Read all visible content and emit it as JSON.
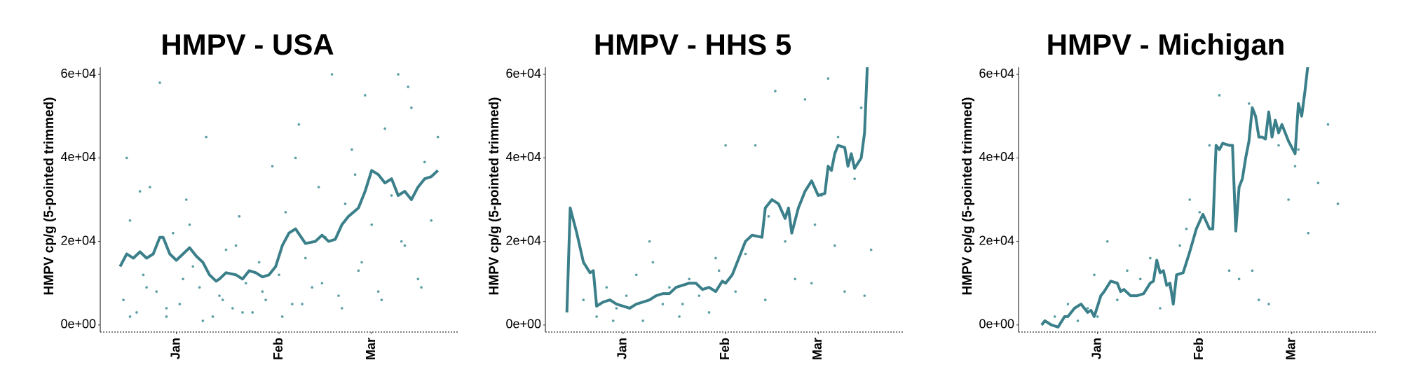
{
  "chart_data": [
    {
      "type": "line",
      "title": "HMPV - USA",
      "y_label": "HMPV cp/g (5-pointed trimmed)",
      "xlim": [
        -23,
        85
      ],
      "ylim": [
        -1700,
        61700
      ],
      "xticks": [
        {
          "value": 0,
          "label": "Jan"
        },
        {
          "value": 31,
          "label": "Feb"
        },
        {
          "value": 59,
          "label": "Mar"
        }
      ],
      "yticks": [
        {
          "value": 0,
          "label": "0e+00"
        },
        {
          "value": 20000,
          "label": "2e+04"
        },
        {
          "value": 40000,
          "label": "4e+04"
        },
        {
          "value": 60000,
          "label": "6e+04"
        }
      ],
      "series": [
        {
          "type": "scatter",
          "color": "#5b9ea6",
          "x": [
            -16,
            -15,
            -14,
            -12,
            -10,
            -8,
            -6,
            -5,
            -3,
            -1,
            1,
            3,
            5,
            7,
            9,
            11,
            13,
            15,
            17,
            19,
            21,
            23,
            25,
            27,
            29,
            31,
            33,
            35,
            37,
            39,
            41,
            43,
            45,
            47,
            49,
            51,
            53,
            55,
            57,
            59,
            61,
            63,
            65,
            67,
            69,
            71,
            73,
            75,
            77,
            79,
            -14,
            -9,
            -3,
            2,
            8,
            14,
            20,
            26,
            32,
            38,
            44,
            50,
            56,
            62,
            68,
            74,
            -11,
            4,
            18,
            36,
            54,
            70
          ],
          "values": [
            6000,
            40000,
            25000,
            3000,
            12000,
            33000,
            8000,
            58000,
            2000,
            22000,
            5000,
            30000,
            14000,
            9000,
            45000,
            2000,
            7000,
            18000,
            4000,
            26000,
            10000,
            3000,
            15000,
            6000,
            38000,
            12000,
            27000,
            5000,
            48000,
            16000,
            9000,
            33000,
            21000,
            60000,
            7000,
            29000,
            42000,
            13000,
            55000,
            24000,
            8000,
            47000,
            31000,
            60000,
            19000,
            52000,
            11000,
            39000,
            25000,
            45000,
            2000,
            9000,
            4000,
            11000,
            1000,
            6000,
            3000,
            8000,
            2000,
            5000,
            10000,
            4000,
            15000,
            6000,
            20000,
            9000,
            32000,
            24000,
            19000,
            40000,
            36000,
            57000
          ]
        },
        {
          "type": "line",
          "color": "#3a7f89",
          "x": [
            -17,
            -15,
            -13,
            -11,
            -9,
            -7,
            -5,
            -4,
            -2,
            0,
            2,
            4,
            6,
            8,
            10,
            12,
            13,
            15,
            18,
            20,
            22,
            24,
            26,
            28,
            30,
            32,
            34,
            36,
            39,
            42,
            44,
            46,
            48,
            50,
            52,
            55,
            57,
            59,
            61,
            63,
            65,
            67,
            69,
            71,
            73,
            75,
            77,
            79
          ],
          "values": [
            14000,
            17000,
            16000,
            17500,
            16000,
            17000,
            21000,
            21000,
            17000,
            15500,
            17000,
            18500,
            16500,
            15000,
            12000,
            10500,
            11000,
            12500,
            12000,
            11000,
            13000,
            12500,
            11500,
            12000,
            14000,
            19000,
            22000,
            23000,
            19500,
            20000,
            21500,
            20000,
            20500,
            24000,
            26000,
            28000,
            32000,
            37000,
            36000,
            34000,
            35000,
            31000,
            32000,
            30000,
            33000,
            35000,
            35500,
            37000
          ]
        }
      ]
    },
    {
      "type": "line",
      "title": "HMPV - HHS 5",
      "y_label": "HMPV cp/g (5-pointed trimmed)",
      "xlim": [
        -23.5,
        84.6
      ],
      "ylim": [
        -1700,
        61700
      ],
      "xticks": [
        {
          "value": 0,
          "label": "Jan"
        },
        {
          "value": 31,
          "label": "Feb"
        },
        {
          "value": 59,
          "label": "Mar"
        }
      ],
      "yticks": [
        {
          "value": 0,
          "label": "0e+00"
        },
        {
          "value": 20000,
          "label": "2e+04"
        },
        {
          "value": 40000,
          "label": "4e+04"
        },
        {
          "value": 60000,
          "label": "6e+04"
        }
      ],
      "series": [
        {
          "type": "scatter",
          "color": "#5b9ea6",
          "x": [
            -12,
            -8,
            -5,
            -2,
            1,
            4,
            6,
            9,
            12,
            14,
            17,
            20,
            23,
            26,
            29,
            31,
            34,
            37,
            40,
            43,
            46,
            49,
            52,
            55,
            57,
            60,
            62,
            65,
            67,
            70,
            72,
            75,
            -3,
            8,
            18,
            28,
            44,
            58,
            64,
            73
          ],
          "values": [
            6000,
            2000,
            9000,
            4000,
            7000,
            12000,
            1000,
            15000,
            5000,
            9000,
            2000,
            11000,
            7000,
            3000,
            13000,
            43000,
            8000,
            17000,
            43000,
            6000,
            56000,
            20000,
            11000,
            54000,
            10000,
            31000,
            59000,
            45000,
            8000,
            35000,
            52000,
            18000,
            1000,
            20000,
            5000,
            16000,
            26000,
            24000,
            19000,
            7000
          ]
        },
        {
          "type": "line",
          "color": "#3a7f89",
          "x": [
            -17,
            -16,
            -14,
            -12,
            -10,
            -9,
            -8,
            -6,
            -4,
            -2,
            0,
            2,
            4,
            6,
            8,
            10,
            12,
            14,
            16,
            18,
            20,
            22,
            24,
            26,
            28,
            30,
            31,
            33,
            35,
            37,
            39,
            42,
            43,
            45,
            47,
            49,
            50,
            51,
            53,
            55,
            57,
            59,
            61,
            62,
            63,
            64,
            65,
            67,
            68,
            69,
            70,
            72,
            73,
            74
          ],
          "values": [
            3000,
            28000,
            22000,
            15000,
            12500,
            13000,
            4500,
            5500,
            6000,
            5000,
            4500,
            4000,
            5000,
            5500,
            6000,
            7000,
            7500,
            7500,
            9000,
            9500,
            10000,
            10000,
            8500,
            9000,
            8000,
            10500,
            10000,
            12000,
            16000,
            20000,
            21500,
            21000,
            28000,
            30000,
            29000,
            25500,
            28000,
            22000,
            28000,
            32000,
            34500,
            31000,
            31500,
            38000,
            37000,
            41000,
            43000,
            42500,
            38000,
            41000,
            37500,
            40000,
            46000,
            65000
          ]
        }
      ]
    },
    {
      "type": "line",
      "title": "HMPV - Michigan",
      "y_label": "HMPV cp/g (5-pointed trimmed)",
      "xlim": [
        -24,
        84.6
      ],
      "ylim": [
        -1700,
        61700
      ],
      "xticks": [
        {
          "value": 0,
          "label": "Jan"
        },
        {
          "value": 31,
          "label": "Feb"
        },
        {
          "value": 59,
          "label": "Mar"
        }
      ],
      "yticks": [
        {
          "value": 0,
          "label": "0e+00"
        },
        {
          "value": 20000,
          "label": "2e+04"
        },
        {
          "value": 40000,
          "label": "4e+04"
        },
        {
          "value": 60000,
          "label": "6e+04"
        }
      ],
      "series": [
        {
          "type": "scatter",
          "color": "#5b9ea6",
          "x": [
            -13,
            -9,
            -6,
            -3,
            0,
            3,
            6,
            9,
            13,
            16,
            19,
            22,
            25,
            28,
            31,
            34,
            37,
            40,
            43,
            46,
            49,
            52,
            55,
            58,
            61,
            64,
            67,
            70,
            73,
            -1,
            11,
            27,
            47,
            60
          ],
          "values": [
            2000,
            5000,
            1000,
            4000,
            2000,
            20000,
            6000,
            13000,
            11000,
            16000,
            4000,
            9000,
            19000,
            30000,
            27000,
            43000,
            55000,
            13000,
            11000,
            53000,
            6000,
            5000,
            43000,
            30000,
            42000,
            22000,
            34000,
            48000,
            29000,
            12000,
            7000,
            23000,
            13000,
            38000
          ]
        },
        {
          "type": "line",
          "color": "#3a7f89",
          "x": [
            -17,
            -16,
            -14,
            -12,
            -10,
            -9,
            -7,
            -5,
            -3,
            -2,
            -1,
            1,
            2,
            4,
            6,
            7,
            8,
            10,
            12,
            14,
            16,
            17,
            18,
            19,
            20,
            21,
            22,
            23,
            24,
            26,
            28,
            30,
            32,
            34,
            35,
            36,
            37,
            38,
            40,
            41,
            42,
            43,
            44,
            45,
            46,
            47,
            48,
            49,
            50,
            51,
            52,
            53,
            54,
            55,
            56,
            58,
            60,
            61,
            62,
            63,
            64
          ],
          "values": [
            0,
            1000,
            0,
            -500,
            2000,
            2000,
            4000,
            5000,
            3000,
            3500,
            2000,
            7000,
            8000,
            10500,
            10000,
            8000,
            8500,
            7000,
            7000,
            7500,
            10000,
            10500,
            15500,
            12500,
            13000,
            9500,
            10000,
            5000,
            12000,
            12500,
            17500,
            23000,
            26500,
            23000,
            23000,
            43000,
            42000,
            43500,
            43000,
            43000,
            22500,
            33000,
            35000,
            40000,
            44000,
            52000,
            50000,
            45000,
            45000,
            44500,
            51000,
            45000,
            49000,
            46000,
            48000,
            44000,
            41000,
            53000,
            50000,
            56000,
            63000
          ]
        }
      ]
    }
  ]
}
